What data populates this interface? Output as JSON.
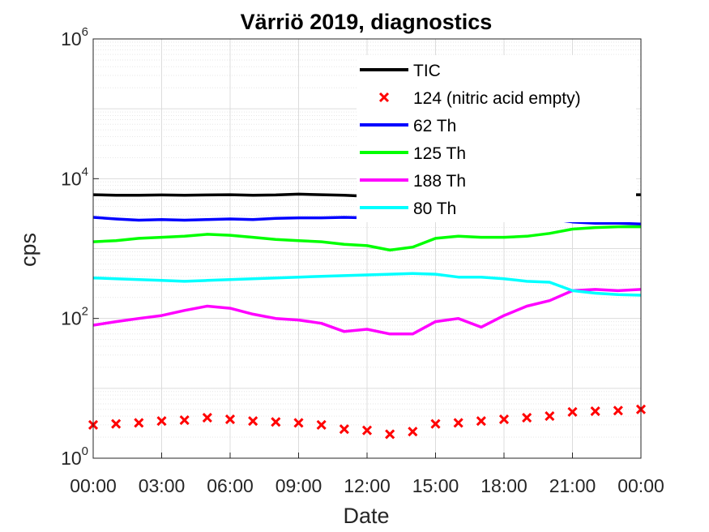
{
  "chart_data": {
    "type": "line",
    "title": "Värriö 2019, diagnostics",
    "xlabel": "Date",
    "ylabel": "cps",
    "y_scale": "log",
    "ylim": [
      1,
      1000000
    ],
    "y_ticks": [
      {
        "base": "10",
        "exp": "0",
        "value": 1
      },
      {
        "base": "10",
        "exp": "2",
        "value": 100
      },
      {
        "base": "10",
        "exp": "4",
        "value": 10000
      },
      {
        "base": "10",
        "exp": "6",
        "value": 1000000
      }
    ],
    "xlim": [
      0,
      24
    ],
    "x_unit": "hours of day",
    "x_ticks": [
      {
        "label": "00:00",
        "value": 0
      },
      {
        "label": "03:00",
        "value": 3
      },
      {
        "label": "06:00",
        "value": 6
      },
      {
        "label": "09:00",
        "value": 9
      },
      {
        "label": "12:00",
        "value": 12
      },
      {
        "label": "15:00",
        "value": 15
      },
      {
        "label": "18:00",
        "value": 18
      },
      {
        "label": "21:00",
        "value": 21
      },
      {
        "label": "00:00",
        "value": 24
      }
    ],
    "grid": true,
    "legend_position": "top-right (inside)",
    "series": [
      {
        "name": "TIC",
        "color": "#000000",
        "style": "line",
        "x": [
          0,
          1,
          2,
          3,
          4,
          5,
          6,
          7,
          8,
          9,
          10,
          11,
          12,
          13,
          14,
          15,
          16,
          17,
          18,
          19,
          20,
          21,
          22,
          23,
          24
        ],
        "y": [
          5900,
          5800,
          5800,
          5850,
          5800,
          5850,
          5900,
          5800,
          5850,
          6000,
          5900,
          5800,
          5600,
          5400,
          5600,
          5800,
          5800,
          5800,
          5700,
          5750,
          5800,
          5800,
          5850,
          5900,
          5900
        ]
      },
      {
        "name": "124 (nitric acid empty)",
        "color": "#ff0000",
        "style": "marker-x",
        "x": [
          0,
          1,
          2,
          3,
          4,
          5,
          6,
          7,
          8,
          9,
          10,
          11,
          12,
          13,
          14,
          15,
          16,
          17,
          18,
          19,
          20,
          21,
          22,
          23,
          24
        ],
        "y": [
          3.0,
          3.1,
          3.2,
          3.4,
          3.5,
          3.8,
          3.6,
          3.4,
          3.3,
          3.2,
          3.0,
          2.6,
          2.5,
          2.2,
          2.4,
          3.1,
          3.2,
          3.4,
          3.6,
          3.8,
          4.0,
          4.6,
          4.7,
          4.8,
          5.0
        ]
      },
      {
        "name": "62 Th",
        "color": "#0000ff",
        "style": "line",
        "x": [
          0,
          1,
          2,
          3,
          4,
          5,
          6,
          7,
          8,
          9,
          10,
          11,
          12,
          13,
          14,
          15,
          16,
          17,
          18,
          19,
          20,
          21,
          22,
          23,
          24
        ],
        "y": [
          2800,
          2650,
          2550,
          2600,
          2550,
          2600,
          2650,
          2600,
          2700,
          2750,
          2750,
          2800,
          2750,
          2800,
          2750,
          2750,
          2700,
          2800,
          2600,
          2650,
          2650,
          2400,
          2300,
          2300,
          2250
        ]
      },
      {
        "name": "125 Th",
        "color": "#00ff00",
        "style": "line",
        "x": [
          0,
          1,
          2,
          3,
          4,
          5,
          6,
          7,
          8,
          9,
          10,
          11,
          12,
          13,
          14,
          15,
          16,
          17,
          18,
          19,
          20,
          21,
          22,
          23,
          24
        ],
        "y": [
          1250,
          1300,
          1400,
          1450,
          1500,
          1600,
          1550,
          1450,
          1350,
          1300,
          1250,
          1150,
          1100,
          950,
          1050,
          1400,
          1500,
          1450,
          1450,
          1500,
          1650,
          1900,
          2000,
          2050,
          2050
        ]
      },
      {
        "name": "188 Th",
        "color": "#ff00ff",
        "style": "line",
        "x": [
          0,
          1,
          2,
          3,
          4,
          5,
          6,
          7,
          8,
          9,
          10,
          11,
          12,
          13,
          14,
          15,
          16,
          17,
          18,
          19,
          20,
          21,
          22,
          23,
          24
        ],
        "y": [
          80,
          90,
          100,
          110,
          130,
          150,
          140,
          115,
          100,
          95,
          85,
          65,
          70,
          60,
          60,
          90,
          100,
          75,
          110,
          150,
          180,
          250,
          260,
          250,
          260
        ]
      },
      {
        "name": "80 Th",
        "color": "#00ffff",
        "style": "line",
        "x": [
          0,
          1,
          2,
          3,
          4,
          5,
          6,
          7,
          8,
          9,
          10,
          11,
          12,
          13,
          14,
          15,
          16,
          17,
          18,
          19,
          20,
          21,
          22,
          23,
          24
        ],
        "y": [
          380,
          370,
          360,
          350,
          340,
          350,
          360,
          370,
          380,
          390,
          400,
          410,
          420,
          430,
          440,
          430,
          390,
          390,
          370,
          340,
          330,
          250,
          230,
          220,
          215
        ]
      }
    ]
  }
}
